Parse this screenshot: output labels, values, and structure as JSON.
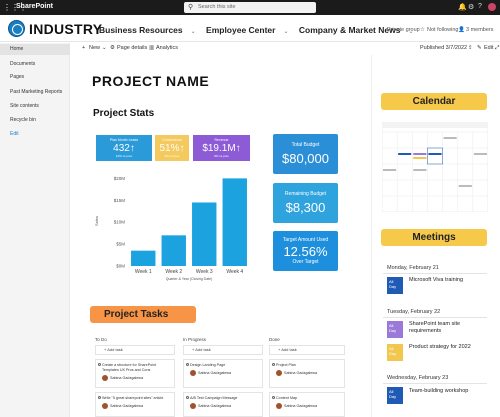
{
  "suite": {
    "app_name": "SharePoint",
    "search_placeholder": "Search this site"
  },
  "site": {
    "name": "INDUSTRY",
    "nav": [
      "Business Resources",
      "Employee Center",
      "Company & Market News"
    ],
    "group_type": "Private group",
    "follow": "Not following",
    "members": "3 members"
  },
  "commands": {
    "new": "New",
    "page_details": "Page details",
    "analytics": "Analytics",
    "published": "Published 3/7/2022",
    "edit": "Edit"
  },
  "leftnav": [
    "Home",
    "Documents",
    "Pages",
    "Past Marketing Reports",
    "Site contents",
    "Recycle bin",
    "Edit"
  ],
  "page": {
    "title": "PROJECT NAME",
    "stats_title": "Project Stats",
    "tasks_title": "Project Tasks",
    "calendar_title": "Calendar",
    "meetings_title": "Meetings"
  },
  "kpis": [
    {
      "label": "Plan Month Leads",
      "value": "432↑",
      "sub": "12% vs prev",
      "color": "#2b9ad8"
    },
    {
      "label": "Conversions",
      "value": "51%↑",
      "sub": "4% vs prev",
      "color": "#f4c95d"
    },
    {
      "label": "Revenue",
      "value": "$19.1M↑",
      "sub": "9% vs prev",
      "color": "#8e5bd6"
    }
  ],
  "totals": [
    {
      "label": "Total Budget",
      "value": "$80,000",
      "sub": "",
      "color": "#2b8fd8"
    },
    {
      "label": "Remaining Budget",
      "value": "$8,300",
      "sub": "",
      "color": "#2fa3dd"
    },
    {
      "label": "Target Amount Used",
      "value": "12.56%",
      "sub": "Over Target",
      "color": "#1e8fdc"
    }
  ],
  "chart_data": {
    "type": "bar",
    "categories": [
      "Week 1",
      "Week 2",
      "Week 3",
      "Week 4"
    ],
    "values": [
      3.5,
      7,
      14.5,
      20
    ],
    "ylabel": "Sales",
    "xlabel": "Quarter & Year (Closing Date)",
    "yticks": [
      "$0M",
      "$5M",
      "$10M",
      "$15M",
      "$20M"
    ],
    "ylim": [
      0,
      21
    ],
    "bar_color": "#1ba2df"
  },
  "tasks": {
    "columns": [
      "To Do",
      "In Progress",
      "Done"
    ],
    "add_label": "Add task",
    "todo": [
      {
        "text": "Create a structure for SharePoint Templates UX Pros and Cons",
        "assignee": "Sabina Gadzgalewa"
      },
      {
        "text": "Write \"5 great sharepoint sites\" article",
        "assignee": "Sabina Gadzgalewa"
      }
    ],
    "in_progress": [
      {
        "text": "Design Landing Page",
        "assignee": "Sabina Gadzgalewa"
      },
      {
        "text": "A/B Test Campaign Message",
        "assignee": "Sabina Gadzgalewa"
      }
    ],
    "done": [
      {
        "text": "Project Plan",
        "assignee": "Sabina Gadzgalewa"
      },
      {
        "text": "Content Map",
        "assignee": "Sabina Gadzgalewa"
      }
    ]
  },
  "meetings": [
    {
      "date": "Monday, February 21",
      "items": [
        {
          "title": "Microsoft Viva training",
          "badge": "All Day",
          "color": "#1f5bb5"
        }
      ]
    },
    {
      "date": "Tuesday, February 22",
      "items": [
        {
          "title": "SharePoint team site requirements",
          "badge": "All Day",
          "color": "#9b79d8"
        },
        {
          "title": "Product strategy for 2022",
          "badge": "All Day",
          "color": "#f1c74e"
        }
      ]
    },
    {
      "date": "Wednesday, February 23",
      "items": [
        {
          "title": "Team-building workshop",
          "badge": "All Day",
          "color": "#1f5bb5"
        }
      ]
    }
  ],
  "colors": {
    "calendar_banner": "#f7c94a",
    "meetings_banner": "#f7c94a",
    "tasks_banner": "#f79446"
  }
}
